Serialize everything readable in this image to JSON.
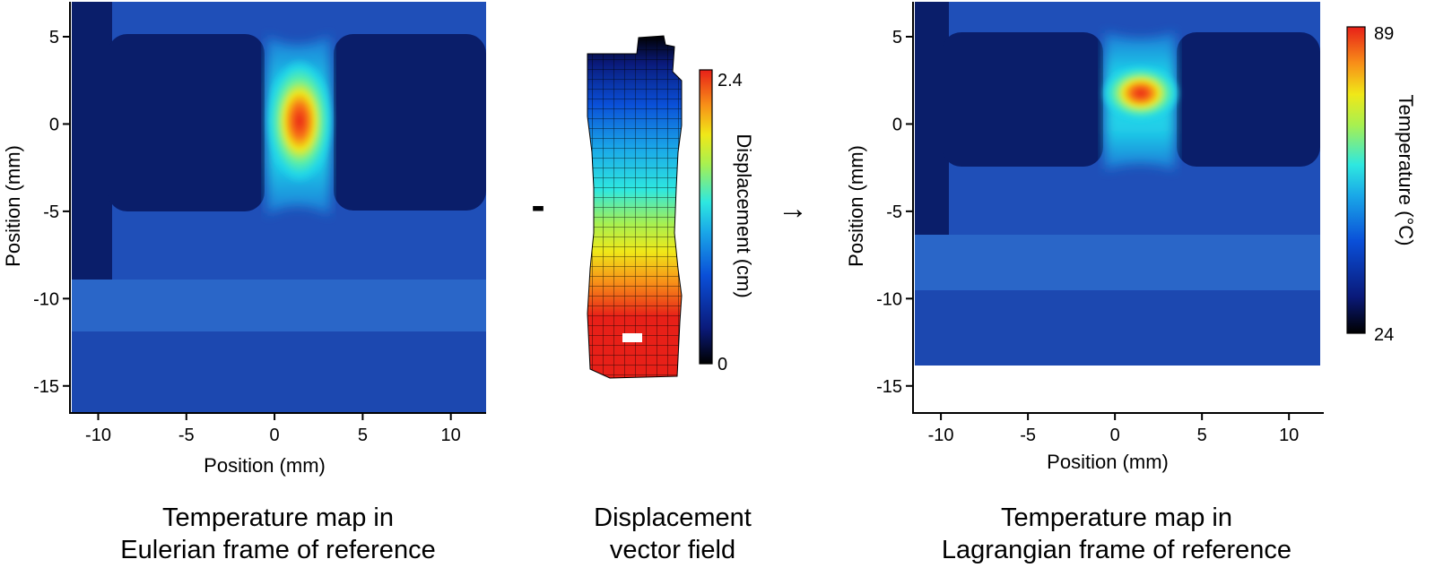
{
  "panels": {
    "eulerian": {
      "xlabel": "Position (mm)",
      "ylabel": "Position (mm)",
      "caption_line1": "Temperature map in",
      "caption_line2": "Eulerian frame of reference"
    },
    "displacement": {
      "operator_symbol": "-",
      "arrow_symbol": "→",
      "colorbar_label": "Displacement (cm)",
      "colorbar_max": "2.4",
      "colorbar_min": "0",
      "caption_line1": "Displacement",
      "caption_line2": "vector field"
    },
    "lagrangian": {
      "xlabel": "Position (mm)",
      "ylabel": "Position (mm)",
      "caption_line1": "Temperature map in",
      "caption_line2": "Lagrangian frame of reference",
      "colorbar_label": "Temperature (°C)",
      "colorbar_max": "89",
      "colorbar_min": "24"
    }
  },
  "colors": {
    "background_blue": "#1f4fb8",
    "dark_blue": "#0a1a5e",
    "hot_red": "#e8201a",
    "colormap": [
      "#000000",
      "#0a1a7a",
      "#0a4fd8",
      "#1aa8e8",
      "#2ee8e0",
      "#a8f050",
      "#f0e818",
      "#f89018",
      "#e82018"
    ]
  },
  "chart_data": [
    {
      "type": "heatmap",
      "title": "",
      "xlabel": "Position (mm)",
      "ylabel": "Position (mm)",
      "x_ticks": [
        -10,
        -5,
        0,
        5,
        10
      ],
      "y_ticks": [
        5,
        0,
        -5,
        -10,
        -15
      ],
      "xlim": [
        -11.5,
        12
      ],
      "ylim": [
        -16.5,
        7
      ],
      "value_range": [
        24,
        89
      ],
      "units": "°C",
      "hotspot": {
        "x": 1.2,
        "y": 0.2,
        "value": 89
      },
      "annotations": [
        "Temperature map in",
        "Eulerian frame of reference"
      ]
    },
    {
      "type": "heatmap",
      "title": "",
      "colorbar_label": "Displacement (cm)",
      "value_range": [
        0,
        2.4
      ],
      "units": "cm",
      "annotations": [
        "Displacement",
        "vector field"
      ]
    },
    {
      "type": "heatmap",
      "title": "",
      "xlabel": "Position (mm)",
      "ylabel": "Position (mm)",
      "x_ticks": [
        -10,
        -5,
        0,
        5,
        10
      ],
      "y_ticks": [
        5,
        0,
        -5,
        -10,
        -15
      ],
      "xlim": [
        -11.5,
        12
      ],
      "ylim": [
        -16.5,
        7
      ],
      "value_range": [
        24,
        89
      ],
      "colorbar_label": "Temperature (°C)",
      "units": "°C",
      "hotspot": {
        "x": 1.2,
        "y": 1.5,
        "value": 89
      },
      "annotations": [
        "Temperature map in",
        "Lagrangian frame of reference"
      ]
    }
  ]
}
